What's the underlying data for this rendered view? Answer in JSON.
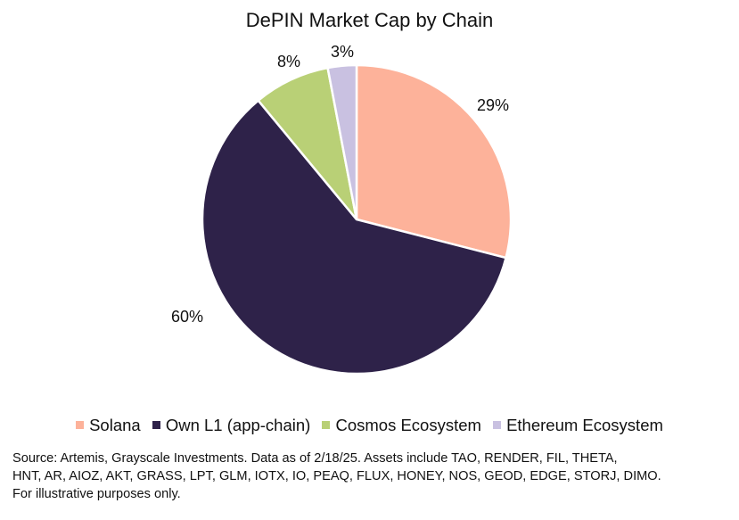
{
  "chart_data": {
    "type": "pie",
    "title": "DePIN Market Cap by Chain",
    "categories": [
      "Solana",
      "Own L1 (app-chain)",
      "Cosmos Ecosystem",
      "Ethereum Ecosystem"
    ],
    "values": [
      29,
      60,
      8,
      3
    ],
    "labels": [
      "29%",
      "60%",
      "8%",
      "3%"
    ],
    "colors": [
      "#FDB29A",
      "#2E2249",
      "#B9D076",
      "#C9C1E1"
    ],
    "legend_position": "bottom",
    "start_angle": "top, clockwise"
  },
  "source": {
    "lines": [
      "Source: Artemis, Grayscale Investments. Data as of 2/18/25. Assets include TAO, RENDER, FIL, THETA,",
      "HNT, AR, AIOZ, AKT, GRASS, LPT, GLM, IOTX, IO, PEAQ, FLUX, HONEY, NOS, GEOD, EDGE, STORJ, DIMO.",
      "For illustrative purposes only."
    ]
  }
}
